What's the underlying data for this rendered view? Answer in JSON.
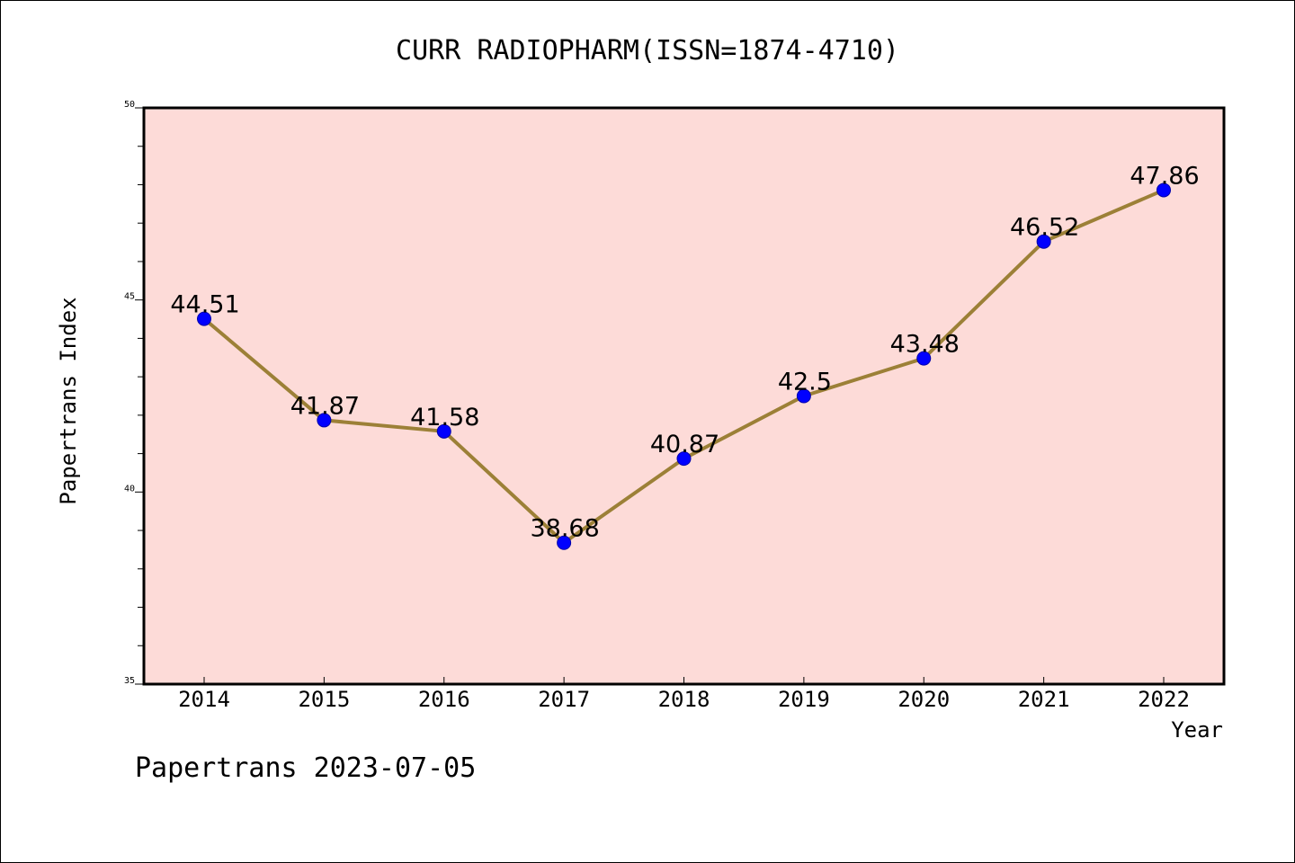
{
  "chart_data": {
    "type": "line",
    "title": "CURR RADIOPHARM(ISSN=1874-4710)",
    "xlabel": "Year",
    "ylabel": "Papertrans Index",
    "footer": "Papertrans 2023-07-05",
    "categories": [
      "2014",
      "2015",
      "2016",
      "2017",
      "2018",
      "2019",
      "2020",
      "2021",
      "2022"
    ],
    "values": [
      44.51,
      41.87,
      41.58,
      38.68,
      40.87,
      42.5,
      43.48,
      46.52,
      47.86
    ],
    "value_labels": [
      "44.51",
      "41.87",
      "41.58",
      "38.68",
      "40.87",
      "42.5",
      "43.48",
      "46.52",
      "47.86"
    ],
    "ylim": [
      35,
      50
    ],
    "yticks": [
      35,
      40,
      45,
      50
    ],
    "ytick_labels": [
      "35",
      "40",
      "45",
      "50"
    ],
    "y_minor_step": 1,
    "grid": false,
    "colors": {
      "plot_background": "#fddbd8",
      "line": "#9c8037",
      "marker": "#0000ff"
    }
  }
}
